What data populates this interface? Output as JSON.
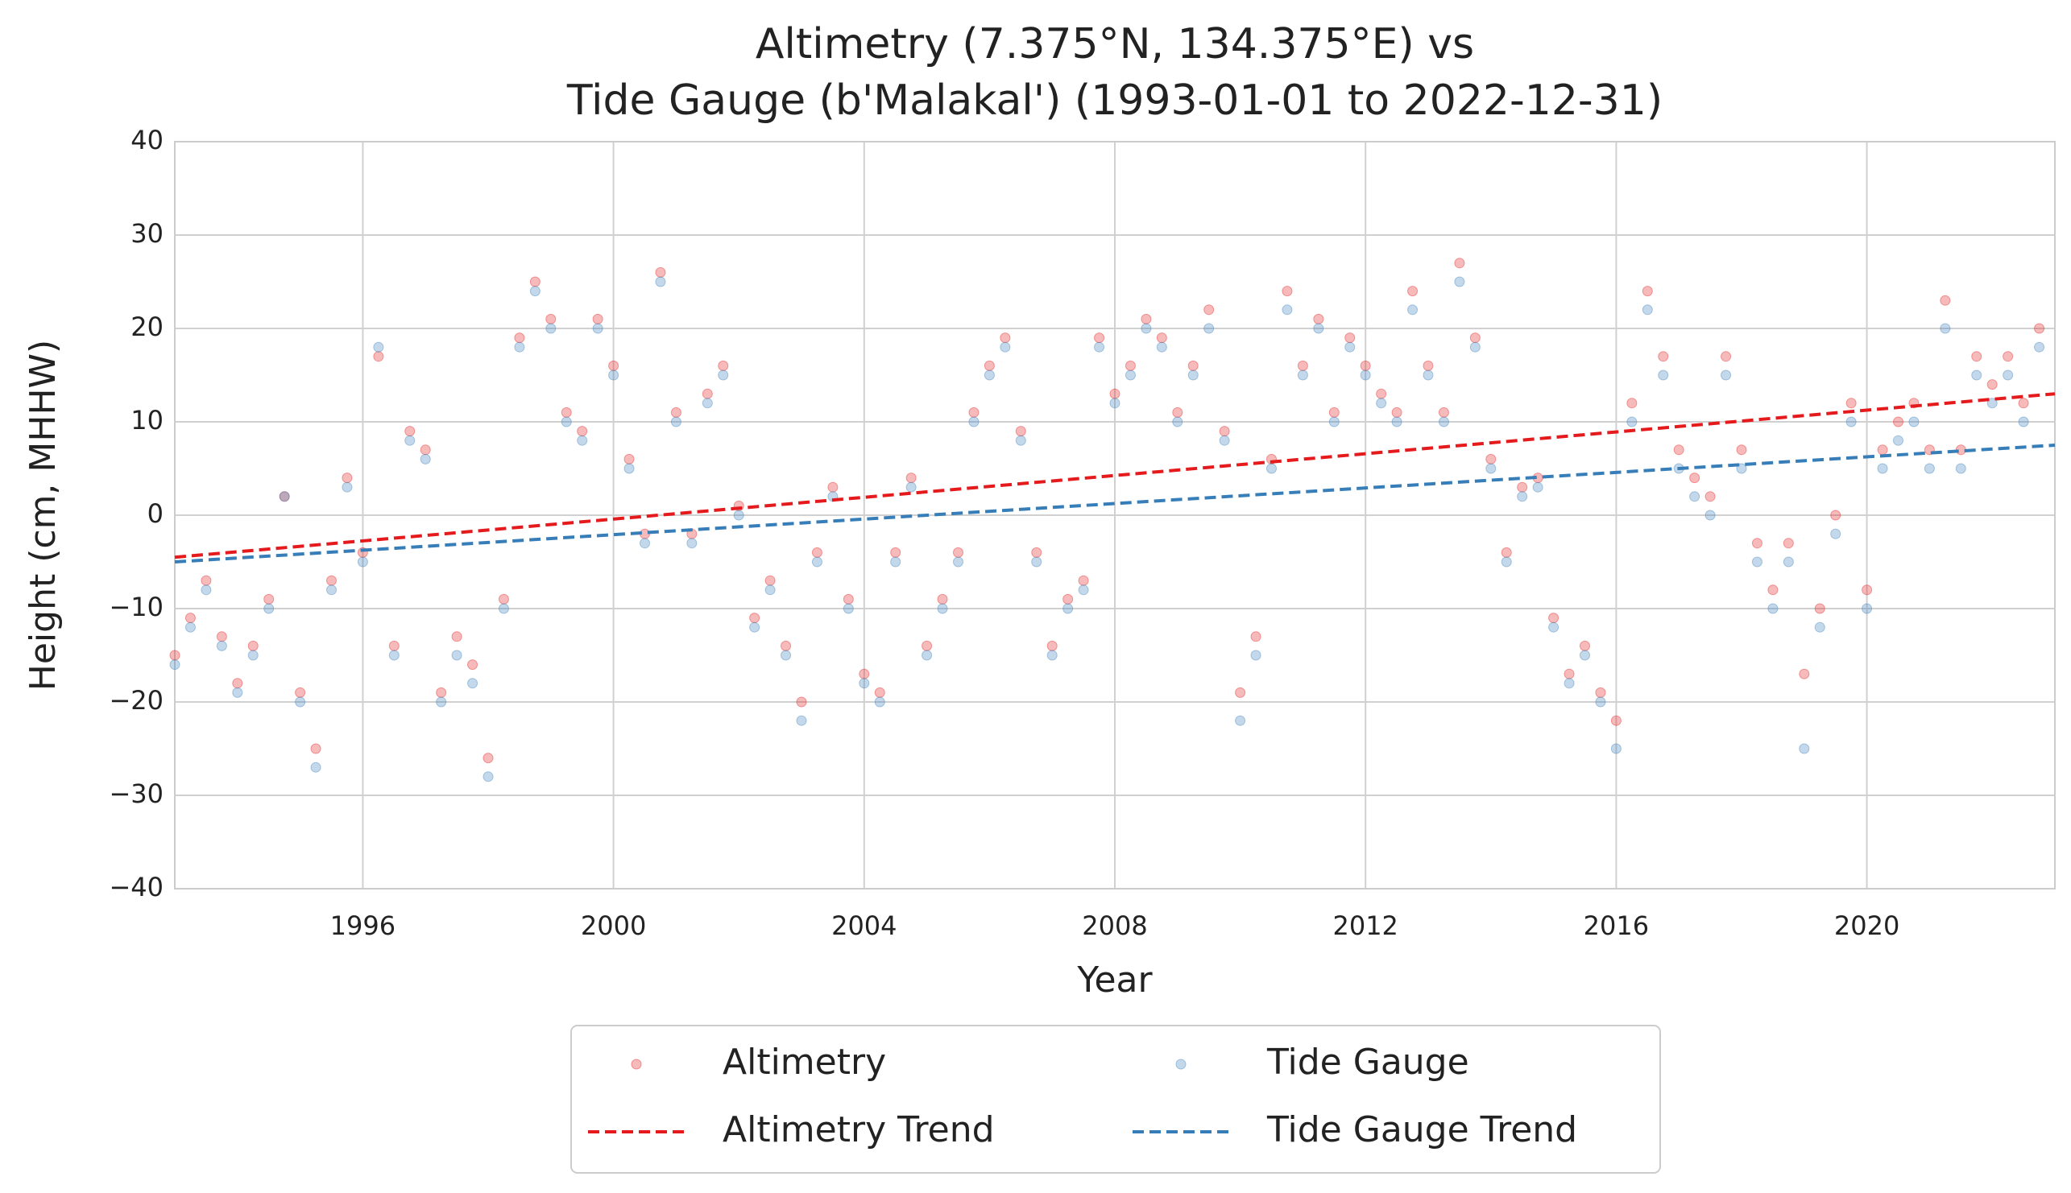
{
  "chart_data": {
    "type": "scatter",
    "title": [
      "Altimetry (7.375°N, 134.375°E) vs",
      "Tide Gauge (b'Malakal') (1993-01-01 to 2022-12-31)"
    ],
    "x_label": "Year",
    "y_label": "Height (cm, MHHW)",
    "xlim": [
      1993,
      2023
    ],
    "ylim": [
      -40,
      40
    ],
    "xticks": [
      1996,
      2000,
      2004,
      2008,
      2012,
      2016,
      2020
    ],
    "yticks": [
      {
        "value": -40,
        "label": "−40"
      },
      {
        "value": -30,
        "label": "−30"
      },
      {
        "value": -20,
        "label": "−20"
      },
      {
        "value": -10,
        "label": "−10"
      },
      0,
      10,
      20,
      30,
      40
    ],
    "grid": true,
    "legend": "below",
    "x": [
      1993.0,
      1993.25,
      1993.5,
      1993.75,
      1994.0,
      1994.25,
      1994.5,
      1994.75,
      1995.0,
      1995.25,
      1995.5,
      1995.75,
      1996.0,
      1996.25,
      1996.5,
      1996.75,
      1997.0,
      1997.25,
      1997.5,
      1997.75,
      1998.0,
      1998.25,
      1998.5,
      1998.75,
      1999.0,
      1999.25,
      1999.5,
      1999.75,
      2000.0,
      2000.25,
      2000.5,
      2000.75,
      2001.0,
      2001.25,
      2001.5,
      2001.75,
      2002.0,
      2002.25,
      2002.5,
      2002.75,
      2003.0,
      2003.25,
      2003.5,
      2003.75,
      2004.0,
      2004.25,
      2004.5,
      2004.75,
      2005.0,
      2005.25,
      2005.5,
      2005.75,
      2006.0,
      2006.25,
      2006.5,
      2006.75,
      2007.0,
      2007.25,
      2007.5,
      2007.75,
      2008.0,
      2008.25,
      2008.5,
      2008.75,
      2009.0,
      2009.25,
      2009.5,
      2009.75,
      2010.0,
      2010.25,
      2010.5,
      2010.75,
      2011.0,
      2011.25,
      2011.5,
      2011.75,
      2012.0,
      2012.25,
      2012.5,
      2012.75,
      2013.0,
      2013.25,
      2013.5,
      2013.75,
      2014.0,
      2014.25,
      2014.5,
      2014.75,
      2015.0,
      2015.25,
      2015.5,
      2015.75,
      2016.0,
      2016.25,
      2016.5,
      2016.75,
      2017.0,
      2017.25,
      2017.5,
      2017.75,
      2018.0,
      2018.25,
      2018.5,
      2018.75,
      2019.0,
      2019.25,
      2019.5,
      2019.75,
      2020.0,
      2020.25,
      2020.5,
      2020.75,
      2021.0,
      2021.25,
      2021.5,
      2021.75,
      2022.0,
      2022.25,
      2022.5,
      2022.75
    ],
    "series": [
      {
        "name": "Altimetry",
        "color": "#e41a1c",
        "kind": "points",
        "values": [
          -15,
          -11,
          -7,
          -13,
          -18,
          -14,
          -9,
          2,
          -19,
          -25,
          -7,
          4,
          -4,
          17,
          -14,
          9,
          7,
          -19,
          -13,
          -16,
          -26,
          -9,
          19,
          25,
          21,
          11,
          9,
          21,
          16,
          6,
          -2,
          26,
          11,
          -2,
          13,
          16,
          1,
          -11,
          -7,
          -14,
          -20,
          -4,
          3,
          -9,
          -17,
          -19,
          -4,
          4,
          -14,
          -9,
          -4,
          11,
          16,
          19,
          9,
          -4,
          -14,
          -9,
          -7,
          19,
          13,
          16,
          21,
          19,
          11,
          16,
          22,
          9,
          -19,
          -13,
          6,
          24,
          16,
          21,
          11,
          19,
          16,
          13,
          11,
          24,
          16,
          11,
          27,
          19,
          6,
          -4,
          3,
          4,
          -11,
          -17,
          -14,
          -19,
          -22,
          12,
          24,
          17,
          7,
          4,
          2,
          17,
          7,
          -3,
          -8,
          -3,
          -17,
          -10,
          0,
          12,
          -8,
          7,
          10,
          12,
          7,
          23,
          7,
          17,
          14,
          17,
          12,
          20
        ]
      },
      {
        "name": "Tide Gauge",
        "color": "#377eb8",
        "kind": "points",
        "values": [
          -16,
          -12,
          -8,
          -14,
          -19,
          -15,
          -10,
          2,
          -20,
          -27,
          -8,
          3,
          -5,
          18,
          -15,
          8,
          6,
          -20,
          -15,
          -18,
          -28,
          -10,
          18,
          24,
          20,
          10,
          8,
          20,
          15,
          5,
          -3,
          25,
          10,
          -3,
          12,
          15,
          0,
          -12,
          -8,
          -15,
          -22,
          -5,
          2,
          -10,
          -18,
          -20,
          -5,
          3,
          -15,
          -10,
          -5,
          10,
          15,
          18,
          8,
          -5,
          -15,
          -10,
          -8,
          18,
          12,
          15,
          20,
          18,
          10,
          15,
          20,
          8,
          -22,
          -15,
          5,
          22,
          15,
          20,
          10,
          18,
          15,
          12,
          10,
          22,
          15,
          10,
          25,
          18,
          5,
          -5,
          2,
          3,
          -12,
          -18,
          -15,
          -20,
          -25,
          10,
          22,
          15,
          5,
          2,
          0,
          15,
          5,
          -5,
          -10,
          -5,
          -25,
          -12,
          -2,
          10,
          -10,
          5,
          8,
          10,
          5,
          20,
          5,
          15,
          12,
          15,
          10,
          18
        ]
      },
      {
        "name": "Altimetry Trend",
        "color": "#e41a1c",
        "kind": "trend",
        "x": [
          1993,
          2023
        ],
        "values": [
          -4.5,
          13
        ]
      },
      {
        "name": "Tide Gauge Trend",
        "color": "#377eb8",
        "kind": "trend",
        "x": [
          1993,
          2023
        ],
        "values": [
          -5,
          7.5
        ]
      }
    ]
  }
}
